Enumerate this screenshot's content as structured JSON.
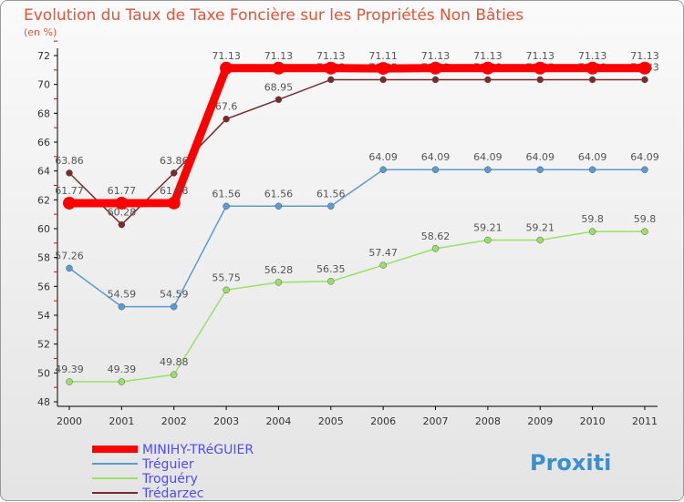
{
  "title": "Evolution du Taux de Taxe Foncière sur les Propriétés Non Bâties",
  "unit": "(en %)",
  "chart_data": {
    "type": "line",
    "title": "Evolution du Taux de Taxe Foncière sur les Propriétés Non Bâties",
    "ylabel": "(en %)",
    "x": [
      "2000",
      "2001",
      "2002",
      "2003",
      "2004",
      "2005",
      "2006",
      "2007",
      "2008",
      "2009",
      "2010",
      "2011"
    ],
    "ylim": [
      48,
      72
    ],
    "yticks": [
      48,
      50,
      52,
      54,
      56,
      58,
      60,
      62,
      64,
      66,
      68,
      70,
      72
    ],
    "legend": "bottom-left",
    "series": [
      {
        "name": "MINIHY-TRéGUIER",
        "color": "#ff0000",
        "values": [
          61.77,
          61.77,
          61.78,
          71.13,
          71.13,
          71.13,
          71.11,
          71.13,
          71.13,
          71.13,
          71.13,
          71.13
        ]
      },
      {
        "name": "Tréguier",
        "color": "#5b9bd5",
        "values": [
          57.26,
          54.59,
          54.59,
          61.56,
          61.56,
          61.56,
          64.09,
          64.09,
          64.09,
          64.09,
          64.09,
          64.09
        ]
      },
      {
        "name": "Troguéry",
        "color": "#99e066",
        "values": [
          49.39,
          49.39,
          49.88,
          55.75,
          56.28,
          56.35,
          57.47,
          58.62,
          59.21,
          59.21,
          59.8,
          59.8
        ]
      },
      {
        "name": "Trédarzec",
        "color": "#7a2a2a",
        "values": [
          63.86,
          60.28,
          63.86,
          67.6,
          68.95,
          70.33,
          70.33,
          70.33,
          70.33,
          70.33,
          70.33,
          70.33
        ]
      }
    ]
  }
}
